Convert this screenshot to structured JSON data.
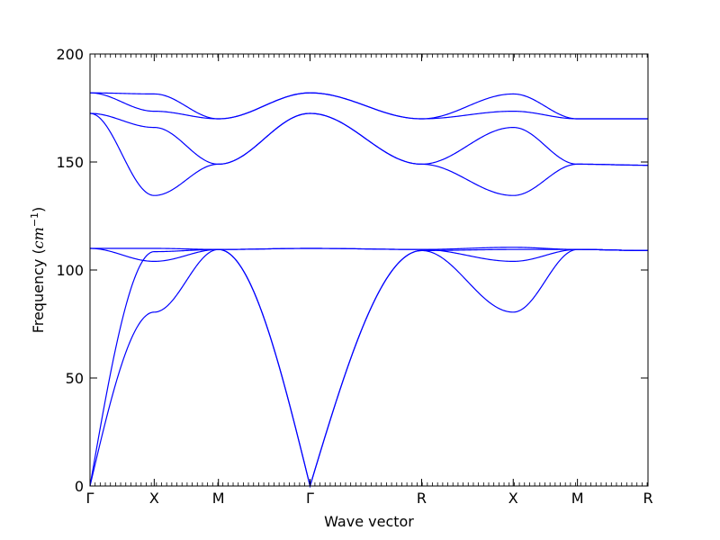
{
  "chart_data": {
    "type": "line",
    "title": "",
    "xlabel": "Wave vector",
    "ylabel": {
      "text": "Frequency (",
      "unit_base": "cm",
      "unit_exp": "−1",
      "close": ")"
    },
    "ylim": [
      0,
      200
    ],
    "yticks": [
      0,
      50,
      100,
      150,
      200
    ],
    "xlim": [
      0,
      10.6
    ],
    "high_symmetry_points": [
      {
        "label": "Γ",
        "x": 0
      },
      {
        "label": "X",
        "x": 1.22
      },
      {
        "label": "M",
        "x": 2.44
      },
      {
        "label": "Γ",
        "x": 4.18
      },
      {
        "label": "R",
        "x": 6.3
      },
      {
        "label": "X",
        "x": 8.04
      },
      {
        "label": "M",
        "x": 9.26
      },
      {
        "label": "R",
        "x": 10.6
      }
    ],
    "grid": false,
    "series_color": "#0000ff",
    "series": [
      {
        "values": [
          0,
          108.5,
          109.5,
          0,
          109,
          109.5,
          109.5,
          109
        ]
      },
      {
        "values": [
          0,
          80.5,
          109.5,
          0,
          109,
          80.5,
          109.5,
          109
        ]
      },
      {
        "values": [
          110,
          110,
          109.5,
          110,
          109.5,
          110.5,
          109.5,
          109
        ]
      },
      {
        "values": [
          110,
          104,
          109.5,
          110,
          109.5,
          104,
          109.5,
          109
        ]
      },
      {
        "values": [
          172.5,
          166,
          149,
          172.5,
          149,
          166,
          149,
          148.5
        ]
      },
      {
        "values": [
          172.5,
          134.5,
          149,
          172.5,
          149,
          134.5,
          149,
          148.5
        ]
      },
      {
        "values": [
          182,
          181.5,
          170,
          182,
          170,
          181.5,
          170,
          170
        ]
      },
      {
        "values": [
          182,
          173.5,
          170,
          182,
          170,
          173.5,
          170,
          170
        ]
      }
    ]
  }
}
